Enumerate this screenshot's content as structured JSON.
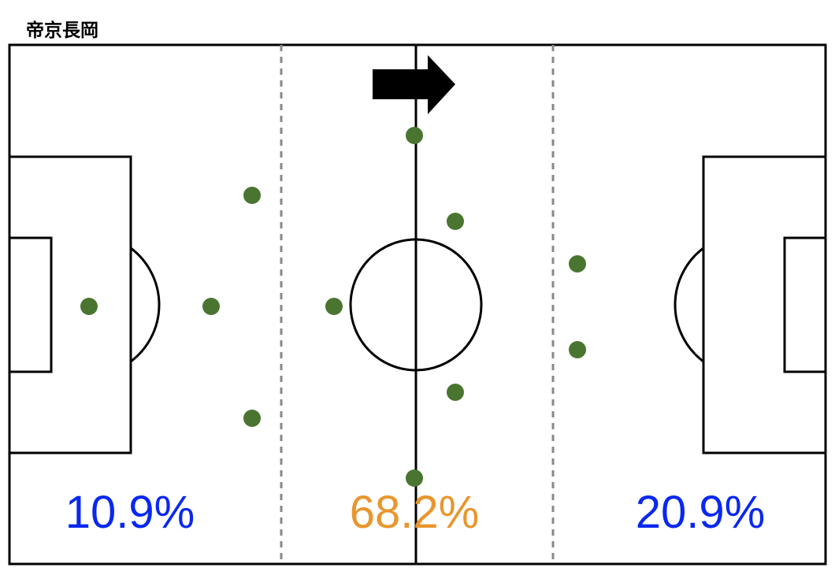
{
  "title": "帝京長岡",
  "zones": [
    {
      "label": "10.9%",
      "color": "#0a28f0"
    },
    {
      "label": "68.2%",
      "color": "#e8962e"
    },
    {
      "label": "20.9%",
      "color": "#0a28f0"
    }
  ]
}
